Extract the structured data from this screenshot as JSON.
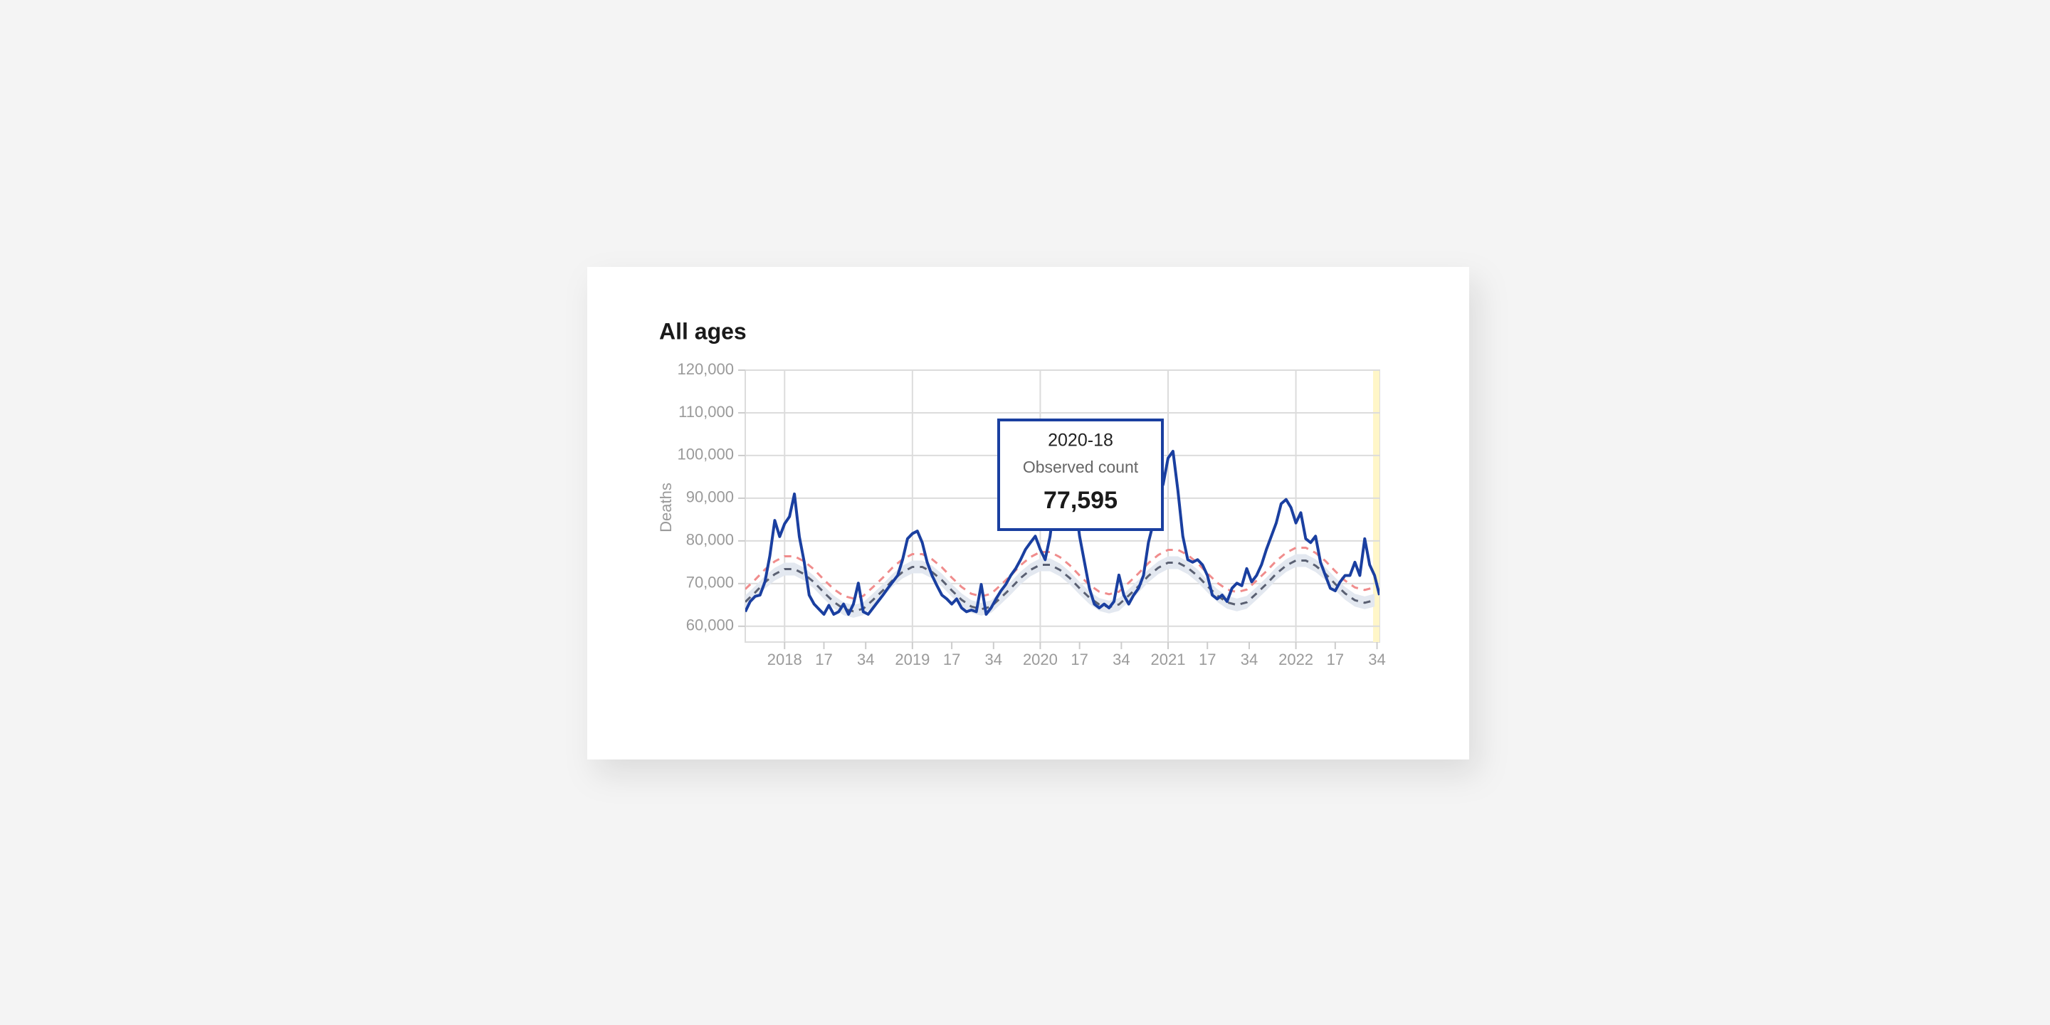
{
  "chart_data": {
    "type": "line",
    "title": "All ages",
    "ylabel": "Deaths",
    "xlim": [
      -16,
      242
    ],
    "ylim": [
      56300,
      120000
    ],
    "grid": true,
    "xticks": [
      {
        "value": 0,
        "label": "2018"
      },
      {
        "value": 52,
        "label": "2019"
      },
      {
        "value": 104,
        "label": "2020"
      },
      {
        "value": 156,
        "label": "2021"
      },
      {
        "value": 208,
        "label": "2022"
      }
    ],
    "xticks_minor": [
      {
        "value": 16,
        "label": "17"
      },
      {
        "value": 33,
        "label": "34"
      },
      {
        "value": 68,
        "label": "17"
      },
      {
        "value": 85,
        "label": "34"
      },
      {
        "value": 120,
        "label": "17"
      },
      {
        "value": 137,
        "label": "34"
      },
      {
        "value": 172,
        "label": "17"
      },
      {
        "value": 189,
        "label": "34"
      },
      {
        "value": 224,
        "label": "17"
      },
      {
        "value": 241,
        "label": "34"
      }
    ],
    "yticks": [
      {
        "value": 60000,
        "label": "60,000"
      },
      {
        "value": 70000,
        "label": "70,000"
      },
      {
        "value": 80000,
        "label": "80,000"
      },
      {
        "value": 90000,
        "label": "90,000"
      },
      {
        "value": 100000,
        "label": "100,000"
      },
      {
        "value": 110000,
        "label": "110,000"
      },
      {
        "value": 120000,
        "label": "120,000"
      }
    ],
    "band": {
      "color": "#e3e8f0",
      "x": [
        -16,
        -12,
        -8,
        -4,
        0,
        4,
        8,
        12,
        16,
        20,
        24,
        28,
        32,
        36,
        40,
        44,
        48,
        52,
        56,
        60,
        64,
        68,
        72,
        76,
        80,
        84,
        88,
        92,
        96,
        100,
        104,
        108,
        112,
        116,
        120,
        124,
        128,
        132,
        136,
        140,
        144,
        148,
        152,
        156,
        160,
        164,
        168,
        172,
        176,
        180,
        184,
        188,
        192,
        196,
        200,
        204,
        208,
        212,
        216,
        220,
        224,
        228,
        232,
        236,
        240
      ],
      "lower": [
        64200,
        66400,
        68800,
        70700,
        71900,
        71900,
        70700,
        68800,
        66400,
        64200,
        62600,
        62000,
        62600,
        64700,
        66900,
        69300,
        71200,
        72400,
        72400,
        71200,
        69300,
        66900,
        64700,
        63100,
        62500,
        63100,
        65200,
        67400,
        69800,
        71700,
        72900,
        72900,
        71700,
        69800,
        67400,
        65200,
        63600,
        63000,
        63600,
        65700,
        67900,
        70300,
        72200,
        73400,
        73400,
        72200,
        70300,
        67900,
        65700,
        64100,
        63500,
        64100,
        66200,
        68400,
        70800,
        72700,
        73900,
        73900,
        72700,
        70800,
        68400,
        66200,
        64600,
        64000,
        64600
      ],
      "upper": [
        67200,
        69400,
        71800,
        73700,
        74900,
        74900,
        73700,
        71800,
        69400,
        67200,
        65600,
        65000,
        65600,
        67700,
        69900,
        72300,
        74200,
        75400,
        75400,
        74200,
        72300,
        69900,
        67700,
        66100,
        65500,
        66100,
        68200,
        70400,
        72800,
        74700,
        75900,
        75900,
        74700,
        72800,
        70400,
        68200,
        66600,
        66000,
        66600,
        68700,
        70900,
        73300,
        75200,
        76400,
        76400,
        75200,
        73300,
        70900,
        68700,
        67100,
        66500,
        67100,
        69200,
        71400,
        73800,
        75700,
        76900,
        76900,
        75700,
        73800,
        71400,
        69200,
        67600,
        67000,
        67600
      ]
    },
    "series": [
      {
        "color": "#f08c8c",
        "dashed": true,
        "x": [
          -16,
          -12,
          -8,
          -4,
          0,
          4,
          8,
          12,
          16,
          20,
          24,
          28,
          32,
          36,
          40,
          44,
          48,
          52,
          56,
          60,
          64,
          68,
          72,
          76,
          80,
          84,
          88,
          92,
          96,
          100,
          104,
          108,
          112,
          116,
          120,
          124,
          128,
          132,
          136,
          140,
          144,
          148,
          152,
          156,
          160,
          164,
          168,
          172,
          176,
          180,
          184,
          188,
          192,
          196,
          200,
          204,
          208,
          212,
          216,
          220,
          224,
          228,
          232,
          236,
          240
        ],
        "values": [
          68700,
          70900,
          73300,
          75200,
          76400,
          76400,
          75200,
          73300,
          70900,
          68700,
          67100,
          66500,
          67100,
          69200,
          71400,
          73800,
          75700,
          76900,
          76900,
          75700,
          73800,
          71400,
          69200,
          67600,
          67000,
          67600,
          69700,
          71900,
          74300,
          76200,
          77400,
          77400,
          76200,
          74300,
          71900,
          69700,
          68100,
          67500,
          68100,
          70200,
          72400,
          74800,
          76700,
          77900,
          77900,
          76700,
          74800,
          72400,
          70200,
          68600,
          68000,
          68600,
          70700,
          72900,
          75300,
          77200,
          78400,
          78400,
          77200,
          75300,
          72900,
          70700,
          69100,
          68500,
          69100
        ]
      },
      {
        "color": "#5a6072",
        "dashed": true,
        "x": [
          -16,
          -12,
          -8,
          -4,
          0,
          4,
          8,
          12,
          16,
          20,
          24,
          28,
          32,
          36,
          40,
          44,
          48,
          52,
          56,
          60,
          64,
          68,
          72,
          76,
          80,
          84,
          88,
          92,
          96,
          100,
          104,
          108,
          112,
          116,
          120,
          124,
          128,
          132,
          136,
          140,
          144,
          148,
          152,
          156,
          160,
          164,
          168,
          172,
          176,
          180,
          184,
          188,
          192,
          196,
          200,
          204,
          208,
          212,
          216,
          220,
          224,
          228,
          232,
          236,
          240
        ],
        "values": [
          65700,
          67900,
          70300,
          72200,
          73400,
          73400,
          72200,
          70300,
          67900,
          65700,
          64100,
          63500,
          64100,
          66200,
          68400,
          70800,
          72700,
          73900,
          73900,
          72700,
          70800,
          68400,
          66200,
          64600,
          64000,
          64600,
          66700,
          68900,
          71300,
          73200,
          74400,
          74400,
          73200,
          71300,
          68900,
          66700,
          65100,
          64500,
          65100,
          67200,
          69400,
          71800,
          73700,
          74900,
          74900,
          73700,
          71800,
          69400,
          67200,
          65600,
          65000,
          65600,
          67700,
          69900,
          72300,
          74200,
          75400,
          75400,
          74200,
          72300,
          69900,
          67700,
          66100,
          65500,
          66100
        ]
      },
      {
        "color": "#1a3fa0",
        "dashed": false,
        "x": [
          -16,
          -14,
          -12,
          -10,
          -8,
          -6,
          -4,
          -2,
          0,
          2,
          4,
          6,
          8,
          10,
          12,
          14,
          16,
          18,
          20,
          22,
          24,
          26,
          28,
          30,
          32,
          34,
          36,
          38,
          40,
          42,
          44,
          46,
          48,
          50,
          52,
          54,
          56,
          58,
          60,
          62,
          64,
          66,
          68,
          70,
          72,
          74,
          76,
          78,
          80,
          82,
          84,
          86,
          88,
          90,
          92,
          94,
          96,
          98,
          100,
          102,
          104,
          106,
          108,
          110,
          112,
          114,
          116,
          118,
          120,
          122,
          124,
          126,
          128,
          130,
          132,
          134,
          136,
          138,
          140,
          142,
          144,
          146,
          148,
          150,
          152,
          154,
          156,
          158,
          160,
          162,
          164,
          166,
          168,
          170,
          172,
          174,
          176,
          178,
          180,
          182,
          184,
          186,
          188,
          190,
          192,
          194,
          196,
          198,
          200,
          202,
          204,
          206,
          208,
          210,
          212,
          214,
          216,
          218,
          220,
          222,
          224,
          226,
          228,
          230,
          232,
          234,
          236,
          238,
          240,
          242
        ],
        "values": [
          63400,
          65800,
          67000,
          67300,
          70400,
          76500,
          84800,
          81000,
          84000,
          85700,
          91000,
          81000,
          75000,
          67300,
          65200,
          64000,
          62800,
          64900,
          62800,
          63400,
          65200,
          62800,
          65200,
          70100,
          63400,
          62800,
          64300,
          65800,
          67300,
          68900,
          70400,
          71900,
          75600,
          80500,
          81700,
          82300,
          79600,
          75000,
          71900,
          69500,
          67300,
          66400,
          65200,
          66400,
          64300,
          63400,
          63800,
          63400,
          69800,
          62800,
          64300,
          66400,
          68300,
          69800,
          71900,
          73500,
          75600,
          78000,
          79600,
          81100,
          78000,
          75600,
          81100,
          90300,
          96400,
          105600,
          102500,
          90300,
          81100,
          75000,
          68900,
          65200,
          64300,
          65200,
          64300,
          65800,
          72000,
          67300,
          65200,
          67300,
          68900,
          71900,
          79600,
          84200,
          90300,
          93300,
          99400,
          101000,
          91800,
          81100,
          75600,
          75000,
          75600,
          74400,
          71900,
          67300,
          66400,
          67300,
          65800,
          68900,
          70100,
          69500,
          73500,
          70400,
          71900,
          74400,
          78000,
          81100,
          84200,
          88700,
          89700,
          87800,
          84200,
          86600,
          80500,
          79600,
          81100,
          75000,
          71900,
          68900,
          68300,
          70400,
          71900,
          71900,
          75000,
          71900,
          80500,
          74400,
          71900,
          67300
        ]
      }
    ],
    "tooltip": {
      "title": "2020-18",
      "metric": "Observed count",
      "value": "77,595"
    }
  }
}
